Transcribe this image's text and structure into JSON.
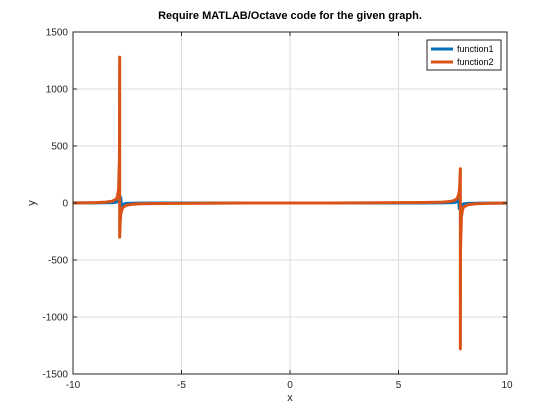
{
  "chart_data": {
    "type": "line",
    "title": "Require MATLAB/Octave code for the given graph.",
    "xlabel": "x",
    "ylabel": "y",
    "xlim": [
      -10,
      10
    ],
    "ylim": [
      -1500,
      1500
    ],
    "xticks": [
      -10,
      -5,
      0,
      5,
      10
    ],
    "yticks": [
      -1500,
      -1000,
      -500,
      0,
      500,
      1000,
      1500
    ],
    "xtick_labels": [
      "-10",
      "-5",
      "0",
      "5",
      "10"
    ],
    "ytick_labels": [
      "-1500",
      "-1000",
      "-500",
      "0",
      "500",
      "1000",
      "1500"
    ],
    "grid": true,
    "legend_position": "top-right",
    "series": [
      {
        "name": "function1",
        "color": "#0072BD",
        "x": [
          -10,
          -9,
          -8.5,
          -8.2,
          -8.0,
          -7.9,
          -7.85,
          -7.8,
          -7.76,
          -7.7,
          -7.6,
          -7.5,
          -7,
          -6,
          -5,
          -4,
          -3,
          -2,
          -1,
          0,
          1,
          2,
          3,
          4,
          5,
          6,
          7,
          7.5,
          7.6,
          7.7,
          7.76,
          7.8,
          7.85,
          7.9,
          8.0,
          8.2,
          8.5,
          9,
          10
        ],
        "y": [
          0.7,
          1.0,
          2.0,
          3.5,
          8.0,
          20.0,
          35.0,
          50.0,
          -50.0,
          -15.0,
          -5.0,
          -3.0,
          -1.0,
          -0.3,
          0.1,
          0.1,
          -0.1,
          0.0,
          0.0,
          0.0,
          0.0,
          0.0,
          0.1,
          -0.1,
          -0.1,
          0.3,
          1.0,
          3.0,
          5.0,
          15.0,
          50.0,
          -50.0,
          -35.0,
          -20.0,
          -8.0,
          -3.5,
          -2.0,
          -1.0,
          -0.7
        ]
      },
      {
        "name": "function2",
        "color": "#D95319",
        "x": [
          -10,
          -9,
          -8.5,
          -8.2,
          -8.0,
          -7.95,
          -7.9,
          -7.86,
          -7.85,
          -7.85,
          -7.84,
          -7.82,
          -7.8,
          -7.75,
          -7.7,
          -7.6,
          -7.5,
          -7.3,
          -7,
          -6.5,
          -6,
          -5,
          -4,
          -3,
          -2,
          -1,
          0,
          1,
          2,
          3,
          4,
          5,
          6,
          6.5,
          7,
          7.3,
          7.5,
          7.6,
          7.7,
          7.75,
          7.8,
          7.82,
          7.84,
          7.85,
          7.85,
          7.86,
          7.9,
          7.95,
          8.0,
          8.2,
          8.5,
          9,
          10
        ],
        "y": [
          0,
          3,
          8,
          15,
          35,
          60,
          120,
          400,
          1280,
          -300,
          -250,
          -150,
          -100,
          -60,
          -40,
          -25,
          -18,
          -12,
          -8,
          -5,
          -4,
          -3,
          -2,
          -1,
          -0.5,
          -0.2,
          0,
          0.2,
          0.5,
          1,
          2,
          3,
          4,
          5,
          8,
          12,
          18,
          25,
          40,
          60,
          100,
          150,
          250,
          300,
          -1280,
          -400,
          -120,
          -60,
          -35,
          -15,
          -8,
          -3,
          0
        ]
      }
    ]
  }
}
